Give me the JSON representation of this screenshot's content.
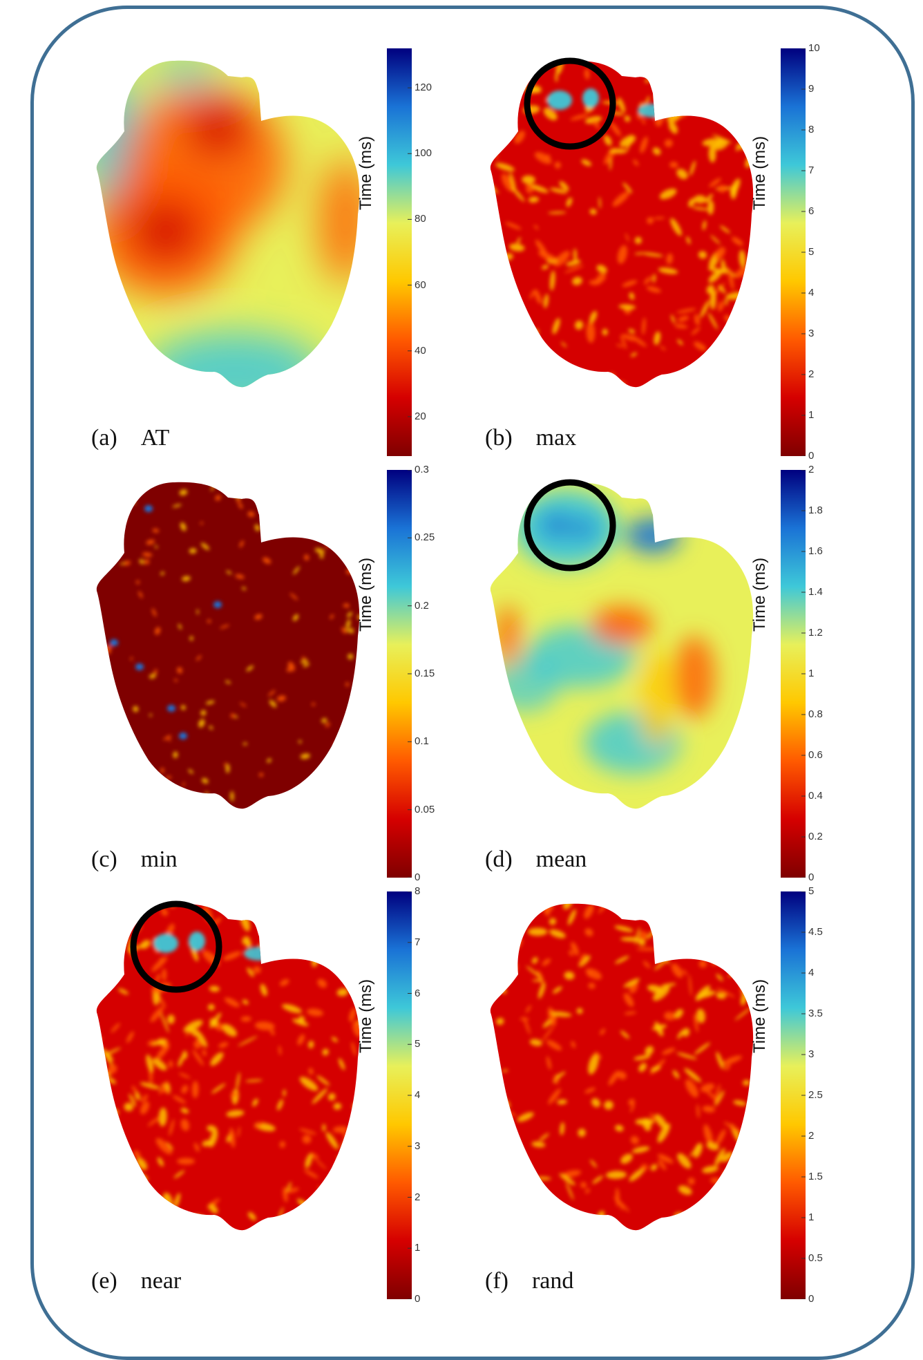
{
  "chart_data": [
    {
      "type": "heatmap",
      "panel_label": "(a)",
      "title": "AT",
      "colorbar": {
        "label": "Time (ms)",
        "ticks": [
          "20",
          "40",
          "60",
          "80",
          "100",
          "120"
        ],
        "range": [
          8,
          132
        ]
      },
      "highlight_circle": false
    },
    {
      "type": "heatmap",
      "panel_label": "(b)",
      "title": "max",
      "colorbar": {
        "label": "Time (ms)",
        "ticks": [
          "0",
          "1",
          "2",
          "3",
          "4",
          "5",
          "6",
          "7",
          "8",
          "9",
          "10"
        ],
        "range": [
          0,
          10
        ]
      },
      "highlight_circle": true
    },
    {
      "type": "heatmap",
      "panel_label": "(c)",
      "title": "min",
      "colorbar": {
        "label": "Time (ms)",
        "ticks": [
          "0",
          "0.05",
          "0.1",
          "0.15",
          "0.2",
          "0.25",
          "0.3"
        ],
        "range": [
          0,
          0.3
        ]
      },
      "highlight_circle": false
    },
    {
      "type": "heatmap",
      "panel_label": "(d)",
      "title": "mean",
      "colorbar": {
        "label": "Time (ms)",
        "ticks": [
          "0",
          "0.2",
          "0.4",
          "0.6",
          "0.8",
          "1",
          "1.2",
          "1.4",
          "1.6",
          "1.8",
          "2"
        ],
        "range": [
          0,
          2
        ]
      },
      "highlight_circle": true
    },
    {
      "type": "heatmap",
      "panel_label": "(e)",
      "title": "near",
      "colorbar": {
        "label": "Time (ms)",
        "ticks": [
          "0",
          "1",
          "2",
          "3",
          "4",
          "5",
          "6",
          "7",
          "8"
        ],
        "range": [
          0,
          8
        ]
      },
      "highlight_circle": true
    },
    {
      "type": "heatmap",
      "panel_label": "(f)",
      "title": "rand",
      "colorbar": {
        "label": "Time (ms)",
        "ticks": [
          "0",
          "0.5",
          "1",
          "1.5",
          "2",
          "2.5",
          "3",
          "3.5",
          "4",
          "4.5",
          "5"
        ],
        "range": [
          0,
          5
        ]
      },
      "highlight_circle": false
    }
  ],
  "colors": {
    "frame": "#3f6f94",
    "colormap": [
      "#7f0000",
      "#d50000",
      "#ff5a00",
      "#ffc800",
      "#e8f05a",
      "#3ec8d8",
      "#1a73d6",
      "#00007f"
    ]
  }
}
